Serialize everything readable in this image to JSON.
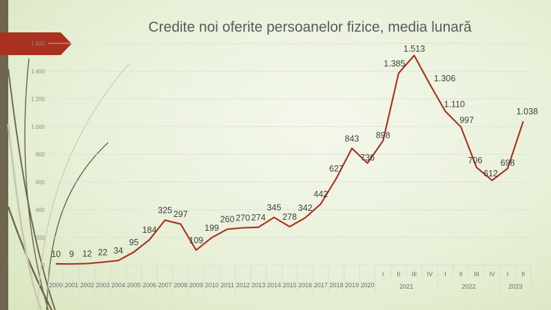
{
  "chart_data": {
    "type": "line",
    "title": "Credite noi oferite persoanelor fizice, media lunară",
    "xlabel": "",
    "ylabel": "",
    "ylim": [
      0,
      1600
    ],
    "yticks": [
      0,
      200,
      400,
      600,
      800,
      1000,
      1200,
      1400,
      1600
    ],
    "ytick_labels": [
      "0",
      "200",
      "400",
      "600",
      "800",
      "1.000",
      "1.200",
      "1.400",
      "1.600"
    ],
    "grid": true,
    "categories": [
      "2000",
      "2001",
      "2002",
      "2003",
      "2004",
      "2005",
      "2006",
      "2007",
      "2008",
      "2009",
      "2010",
      "2011",
      "2012",
      "2013",
      "2014",
      "2015",
      "2016",
      "2017",
      "2018",
      "2019",
      "2020",
      "I",
      "II",
      "III",
      "IV",
      "I",
      "II",
      "III",
      "IV",
      "I",
      "II"
    ],
    "year_groups": [
      {
        "label": "2021",
        "count": 4
      },
      {
        "label": "2022",
        "count": 4
      },
      {
        "label": "2023",
        "count": 2
      }
    ],
    "series": [
      {
        "name": "Credite noi",
        "color": "#a8321e",
        "values": [
          10,
          9,
          12,
          22,
          34,
          95,
          184,
          325,
          297,
          109,
          199,
          260,
          270,
          274,
          345,
          278,
          342,
          442,
          627,
          843,
          736,
          898,
          1385,
          1513,
          1306,
          1110,
          997,
          706,
          612,
          698,
          1038
        ],
        "data_labels": [
          "10",
          "9",
          "12",
          "22",
          "34",
          "95",
          "184",
          "325",
          "297",
          "109",
          "199",
          "260",
          "270",
          "274",
          "345",
          "278",
          "342",
          "442",
          "627",
          "843",
          "736",
          "898",
          "1.385",
          "1.513",
          "1.306",
          "1.110",
          "997",
          "706",
          "612",
          "698",
          "1.038"
        ]
      }
    ]
  }
}
